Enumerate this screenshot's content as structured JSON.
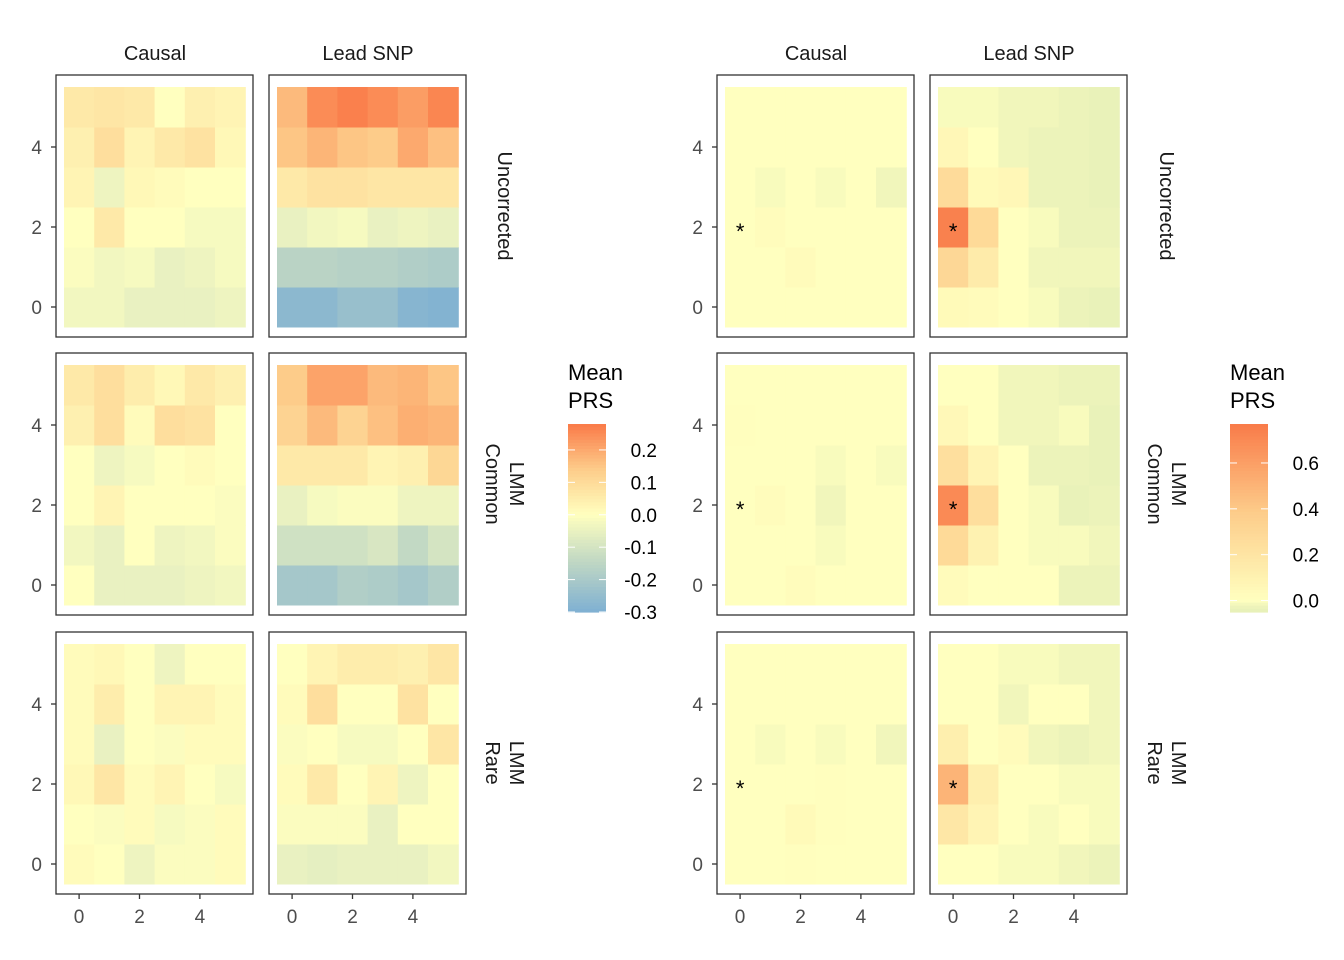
{
  "chart_data": [
    {
      "type": "heatmap",
      "title": "",
      "xlabel": "",
      "ylabel": "",
      "x": [
        0,
        1,
        2,
        3,
        4,
        5
      ],
      "y": [
        0,
        1,
        2,
        3,
        4,
        5
      ],
      "x_ticks": [
        "0",
        "2",
        "4"
      ],
      "y_ticks": [
        "0",
        "2",
        "4"
      ],
      "columns": [
        "Causal",
        "Lead SNP"
      ],
      "rows": [
        "Uncorrected",
        "Common\nLMM",
        "Rare\nLMM"
      ],
      "legend": {
        "title": "Mean\nPRS",
        "ticks": [
          "0.2",
          "0.1",
          "0.0",
          "-0.1",
          "-0.2",
          "-0.3"
        ],
        "tick_values": [
          0.2,
          0.1,
          0.0,
          -0.1,
          -0.2,
          -0.3
        ],
        "range": [
          -0.3,
          0.28
        ],
        "position": "right"
      },
      "colors": {
        "low": "#7fb0d2",
        "mid": "#ffffbf",
        "high": "#fa7a48"
      },
      "panels": [
        {
          "row": "Uncorrected",
          "col": "Causal",
          "values": [
            [
              -0.03,
              -0.03,
              -0.05,
              -0.05,
              -0.05,
              -0.04
            ],
            [
              -0.01,
              -0.03,
              -0.02,
              -0.05,
              -0.04,
              -0.02
            ],
            [
              0.0,
              0.06,
              0.0,
              0.0,
              -0.02,
              -0.02
            ],
            [
              0.03,
              -0.04,
              0.02,
              0.01,
              0.0,
              0.0
            ],
            [
              0.04,
              0.09,
              0.03,
              0.06,
              0.08,
              0.02
            ],
            [
              0.06,
              0.07,
              0.06,
              0.0,
              0.04,
              0.03
            ]
          ]
        },
        {
          "row": "Uncorrected",
          "col": "Lead SNP",
          "values": [
            [
              -0.27,
              -0.27,
              -0.24,
              -0.24,
              -0.28,
              -0.29
            ],
            [
              -0.16,
              -0.16,
              -0.17,
              -0.17,
              -0.18,
              -0.19
            ],
            [
              -0.05,
              -0.03,
              -0.02,
              -0.05,
              -0.04,
              -0.05
            ],
            [
              0.06,
              0.08,
              0.08,
              0.07,
              0.07,
              0.07
            ],
            [
              0.15,
              0.18,
              0.15,
              0.14,
              0.2,
              0.16
            ],
            [
              0.17,
              0.25,
              0.27,
              0.25,
              0.22,
              0.26
            ]
          ]
        },
        {
          "row": "Common\nLMM",
          "col": "Causal",
          "values": [
            [
              0.0,
              -0.05,
              -0.05,
              -0.05,
              -0.04,
              -0.03
            ],
            [
              -0.03,
              -0.05,
              0.0,
              -0.04,
              -0.03,
              -0.01
            ],
            [
              0.0,
              0.03,
              0.0,
              0.0,
              0.0,
              -0.01
            ],
            [
              0.0,
              -0.04,
              -0.02,
              0.0,
              0.01,
              0.0
            ],
            [
              0.04,
              0.09,
              0.01,
              0.09,
              0.08,
              0.0
            ],
            [
              0.06,
              0.09,
              0.05,
              0.02,
              0.06,
              0.04
            ]
          ]
        },
        {
          "row": "Common\nLMM",
          "col": "Lead SNP",
          "values": [
            [
              -0.21,
              -0.21,
              -0.18,
              -0.19,
              -0.21,
              -0.18
            ],
            [
              -0.11,
              -0.11,
              -0.11,
              -0.09,
              -0.14,
              -0.1
            ],
            [
              -0.05,
              -0.02,
              -0.01,
              -0.01,
              -0.04,
              -0.04
            ],
            [
              0.06,
              0.06,
              0.06,
              0.03,
              0.04,
              0.11
            ],
            [
              0.12,
              0.17,
              0.12,
              0.16,
              0.19,
              0.18
            ],
            [
              0.14,
              0.21,
              0.21,
              0.17,
              0.18,
              0.15
            ]
          ]
        },
        {
          "row": "Rare\nLMM",
          "col": "Causal",
          "values": [
            [
              0.01,
              0.0,
              -0.04,
              -0.01,
              -0.01,
              0.01
            ],
            [
              0.0,
              -0.01,
              0.01,
              -0.02,
              -0.01,
              0.01
            ],
            [
              0.02,
              0.07,
              0.01,
              0.03,
              0.0,
              -0.02
            ],
            [
              0.01,
              -0.05,
              0.0,
              -0.01,
              0.01,
              0.01
            ],
            [
              0.01,
              0.05,
              0.0,
              0.03,
              0.03,
              0.01
            ],
            [
              0.01,
              0.02,
              0.0,
              -0.04,
              0.0,
              0.0
            ]
          ]
        },
        {
          "row": "Rare\nLMM",
          "col": "Lead SNP",
          "values": [
            [
              -0.05,
              -0.06,
              -0.05,
              -0.05,
              -0.05,
              -0.03
            ],
            [
              -0.01,
              -0.01,
              -0.01,
              -0.05,
              0.0,
              0.0
            ],
            [
              0.01,
              0.06,
              0.0,
              0.03,
              -0.04,
              0.0
            ],
            [
              -0.01,
              0.0,
              -0.02,
              -0.02,
              0.0,
              0.07
            ],
            [
              0.01,
              0.09,
              0.0,
              0.0,
              0.08,
              0.0
            ],
            [
              0.0,
              0.03,
              0.05,
              0.05,
              0.04,
              0.07
            ]
          ]
        }
      ]
    },
    {
      "type": "heatmap",
      "title": "",
      "xlabel": "",
      "ylabel": "",
      "x": [
        0,
        1,
        2,
        3,
        4,
        5
      ],
      "y": [
        0,
        1,
        2,
        3,
        4,
        5
      ],
      "x_ticks": [
        "0",
        "2",
        "4"
      ],
      "y_ticks": [
        "0",
        "2",
        "4"
      ],
      "columns": [
        "Causal",
        "Lead SNP"
      ],
      "rows": [
        "Uncorrected",
        "Common\nLMM",
        "Rare\nLMM"
      ],
      "legend": {
        "title": "Mean\nPRS",
        "ticks": [
          "0.6",
          "0.4",
          "0.2",
          "0.0"
        ],
        "tick_values": [
          0.6,
          0.4,
          0.2,
          0.0
        ],
        "range": [
          -0.05,
          0.77
        ],
        "position": "right"
      },
      "colors": {
        "low": "#e6f0b8",
        "mid": "#ffffbf",
        "high": "#f97b49"
      },
      "annotations": [
        {
          "label": "*",
          "x": 0,
          "y": 2,
          "panels": "all"
        }
      ],
      "panels": [
        {
          "row": "Uncorrected",
          "col": "Causal",
          "values": [
            [
              0.0,
              0.0,
              0.0,
              0.0,
              0.0,
              0.0
            ],
            [
              0.0,
              0.0,
              0.03,
              0.0,
              0.0,
              0.0
            ],
            [
              0.0,
              0.02,
              0.0,
              0.0,
              0.0,
              0.0
            ],
            [
              0.0,
              -0.01,
              0.0,
              -0.01,
              0.0,
              -0.02
            ],
            [
              0.0,
              0.0,
              0.0,
              0.0,
              0.0,
              0.0
            ],
            [
              0.0,
              0.0,
              0.0,
              0.0,
              0.0,
              0.0
            ]
          ]
        },
        {
          "row": "Uncorrected",
          "col": "Lead SNP",
          "values": [
            [
              0.04,
              0.03,
              0.0,
              -0.01,
              -0.03,
              -0.04
            ],
            [
              0.3,
              0.15,
              0.0,
              -0.02,
              -0.02,
              -0.02
            ],
            [
              0.74,
              0.28,
              0.0,
              -0.01,
              -0.03,
              -0.03
            ],
            [
              0.27,
              0.04,
              0.06,
              -0.03,
              -0.03,
              -0.04
            ],
            [
              0.06,
              0.0,
              -0.02,
              -0.03,
              -0.03,
              -0.04
            ],
            [
              -0.01,
              -0.01,
              -0.02,
              -0.02,
              -0.03,
              -0.04
            ]
          ]
        },
        {
          "row": "Common\nLMM",
          "col": "Causal",
          "values": [
            [
              0.0,
              0.0,
              0.02,
              0.0,
              0.0,
              0.0
            ],
            [
              0.0,
              0.0,
              0.0,
              -0.01,
              0.0,
              0.0
            ],
            [
              0.0,
              0.02,
              0.0,
              -0.02,
              0.0,
              0.0
            ],
            [
              0.0,
              0.0,
              0.0,
              -0.01,
              0.0,
              -0.01
            ],
            [
              0.01,
              0.0,
              0.0,
              0.0,
              0.0,
              0.0
            ],
            [
              0.0,
              0.0,
              0.0,
              0.0,
              0.0,
              0.0
            ]
          ]
        },
        {
          "row": "Common\nLMM",
          "col": "Lead SNP",
          "values": [
            [
              0.03,
              0.0,
              0.0,
              0.0,
              -0.03,
              -0.03
            ],
            [
              0.28,
              0.1,
              0.0,
              -0.01,
              -0.01,
              -0.02
            ],
            [
              0.7,
              0.25,
              0.0,
              -0.01,
              -0.04,
              -0.03
            ],
            [
              0.24,
              0.08,
              0.0,
              -0.03,
              -0.03,
              -0.04
            ],
            [
              0.05,
              0.0,
              -0.02,
              -0.02,
              -0.01,
              -0.04
            ],
            [
              0.0,
              0.0,
              -0.02,
              -0.02,
              -0.03,
              -0.03
            ]
          ]
        },
        {
          "row": "Rare\nLMM",
          "col": "Causal",
          "values": [
            [
              0.0,
              0.0,
              0.01,
              0.0,
              0.0,
              0.0
            ],
            [
              0.0,
              0.0,
              0.04,
              0.01,
              0.0,
              0.0
            ],
            [
              0.0,
              0.0,
              0.0,
              0.01,
              0.0,
              0.0
            ],
            [
              0.0,
              -0.01,
              0.0,
              -0.01,
              0.0,
              -0.02
            ],
            [
              0.0,
              0.0,
              0.0,
              0.0,
              0.0,
              0.0
            ],
            [
              0.0,
              0.0,
              0.0,
              0.0,
              0.0,
              0.0
            ]
          ]
        },
        {
          "row": "Rare\nLMM",
          "col": "Lead SNP",
          "values": [
            [
              0.0,
              0.0,
              -0.01,
              -0.01,
              -0.02,
              -0.03
            ],
            [
              0.18,
              0.08,
              0.0,
              -0.01,
              0.0,
              -0.01
            ],
            [
              0.5,
              0.12,
              0.0,
              0.0,
              -0.01,
              -0.01
            ],
            [
              0.12,
              0.0,
              0.03,
              -0.02,
              -0.03,
              -0.02
            ],
            [
              0.0,
              0.0,
              -0.02,
              0.0,
              0.0,
              -0.02
            ],
            [
              0.0,
              0.0,
              -0.01,
              -0.01,
              -0.02,
              -0.02
            ]
          ]
        }
      ]
    }
  ]
}
